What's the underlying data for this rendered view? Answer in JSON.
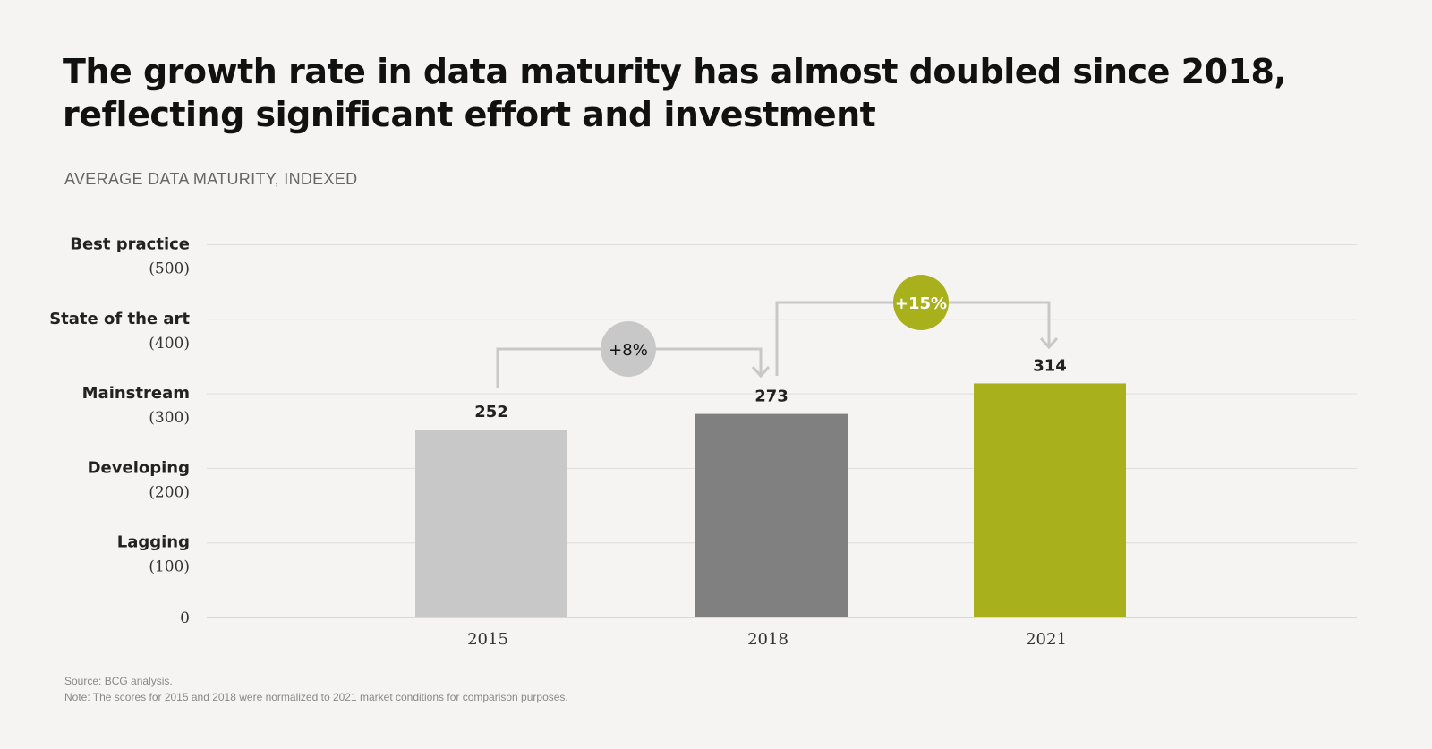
{
  "title": "The growth rate in data maturity has almost doubled since 2018, reflecting significant effort and investment",
  "subtitle": "AVERAGE DATA MATURITY, INDEXED",
  "notes": {
    "source": "Source: BCG analysis.",
    "note": "Note: The scores for 2015 and 2018 were normalized to 2021 market conditions for comparison purposes."
  },
  "chart_data": {
    "type": "bar",
    "categories": [
      "2015",
      "2018",
      "2021"
    ],
    "values": [
      252,
      273,
      314
    ],
    "data_labels": [
      "252",
      "273",
      "314"
    ],
    "colors": [
      "#c8c8c8",
      "#808080",
      "#a8b11c"
    ],
    "ylim": [
      0,
      500
    ],
    "grid": true,
    "yticks": [
      {
        "value": 0,
        "name": "",
        "label": "0"
      },
      {
        "value": 100,
        "name": "Lagging",
        "label": "(100)"
      },
      {
        "value": 200,
        "name": "Developing",
        "label": "(200)"
      },
      {
        "value": 300,
        "name": "Mainstream",
        "label": "(300)"
      },
      {
        "value": 400,
        "name": "State of the art",
        "label": "(400)"
      },
      {
        "value": 500,
        "name": "Best practice",
        "label": "(500)"
      }
    ],
    "annotations": [
      {
        "from": "2015",
        "to": "2018",
        "text": "+8%",
        "color": "#c8c8c8",
        "text_color": "#111111"
      },
      {
        "from": "2018",
        "to": "2021",
        "text": "+15%",
        "color": "#a8b11c",
        "text_color": "#ffffff"
      }
    ]
  }
}
